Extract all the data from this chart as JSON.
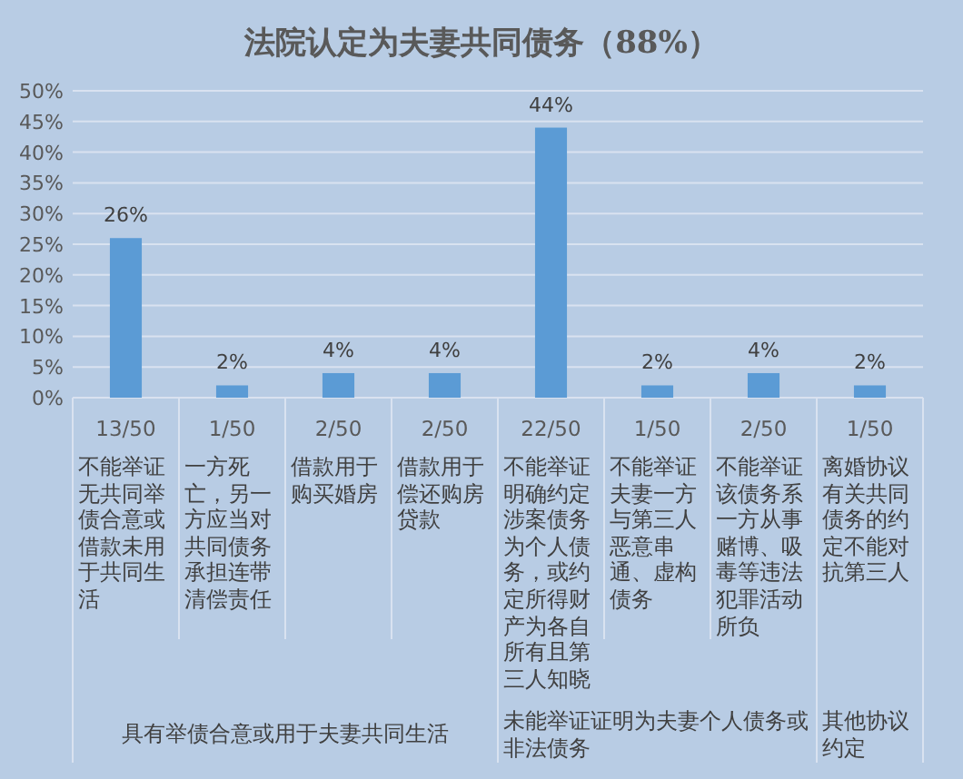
{
  "chart_data": {
    "type": "bar",
    "title": "法院认定为夫妻共同债务（88%）",
    "categories": [
      "13/50\n不能举证无共同举债合意或借款未用于共同生活",
      "1/50\n一方死亡，另一方应当对共同债务承担连带清偿责任",
      "2/50\n借款用于购买婚房",
      "2/50\n借款用于偿还购房贷款",
      "22/50\n不能举证明确约定涉案债务为个人债务，或约定所得财产为各自所有且第三人知晓",
      "1/50\n不能举证夫妻一方与第三人恶意串通、虚构债务",
      "2/50\n不能举证该债务系一方从事赌博、吸毒等违法犯罪活动所负",
      "1/50\n离婚协议有关共同债务的约定不能对抗第三人"
    ],
    "values": [
      26,
      2,
      4,
      4,
      44,
      2,
      4,
      2
    ],
    "color": "#5b9bd5",
    "value_labels": [
      "26%",
      "2%",
      "4%",
      "4%",
      "44%",
      "2%",
      "4%",
      "2%"
    ],
    "ylim": [
      0,
      50
    ],
    "yticks": [
      {
        "value": 0,
        "label": "0%"
      },
      {
        "value": 5,
        "label": "5%"
      },
      {
        "value": 10,
        "label": "10%"
      },
      {
        "value": 15,
        "label": "15%"
      },
      {
        "value": 20,
        "label": "20%"
      },
      {
        "value": 25,
        "label": "25%"
      },
      {
        "value": 30,
        "label": "30%"
      },
      {
        "value": 35,
        "label": "35%"
      },
      {
        "value": 40,
        "label": "40%"
      },
      {
        "value": 45,
        "label": "45%"
      },
      {
        "value": 50,
        "label": "50%"
      }
    ],
    "grid": "y",
    "annotations": [
      "具有举债合意或用于夫妻共同生活",
      "未能举证证明为夫妻个人债务或非法债务",
      "其他协议约定"
    ]
  }
}
